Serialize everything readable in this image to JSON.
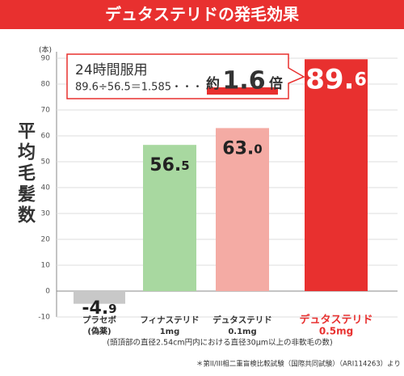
{
  "chart_data": {
    "type": "bar",
    "title": "デュタステリドの発毛効果",
    "y_label": "平均毛髪数",
    "y_unit": "(本)",
    "categories": [
      "プラセボ",
      "フィナステリド",
      "デュタステリド",
      "デュタステリド"
    ],
    "category_notes": [
      "(偽薬)",
      "1mg",
      "0.1mg",
      "0.5mg"
    ],
    "values": [
      -4.9,
      56.5,
      63.0,
      89.6
    ],
    "value_labels": [
      "-4.9",
      "56.5",
      "63.0",
      "89.6"
    ],
    "colors": [
      "#c8c8c8",
      "#a8d8a0",
      "#f4aba4",
      "#e8302f"
    ],
    "label_colors": [
      "#333333",
      "#333333",
      "#333333",
      "#e8302f"
    ],
    "ylim": [
      -10,
      90
    ],
    "yticks": [
      -10,
      0,
      10,
      20,
      30,
      40,
      50,
      60,
      70,
      80,
      90
    ],
    "grid": true,
    "annotation": {
      "line1": "24時間服用",
      "line2": "89.6÷56.5＝1.585・・・・",
      "prefix": "約",
      "ratio": "1.6",
      "suffix": "倍"
    },
    "footnote": "(頭頂部の直径2.54cm円内における直径30μm以上の非軟毛の数)",
    "source": "＊第II/III相二重盲検比較試験（国際共同試験）（ARI114263）より"
  }
}
